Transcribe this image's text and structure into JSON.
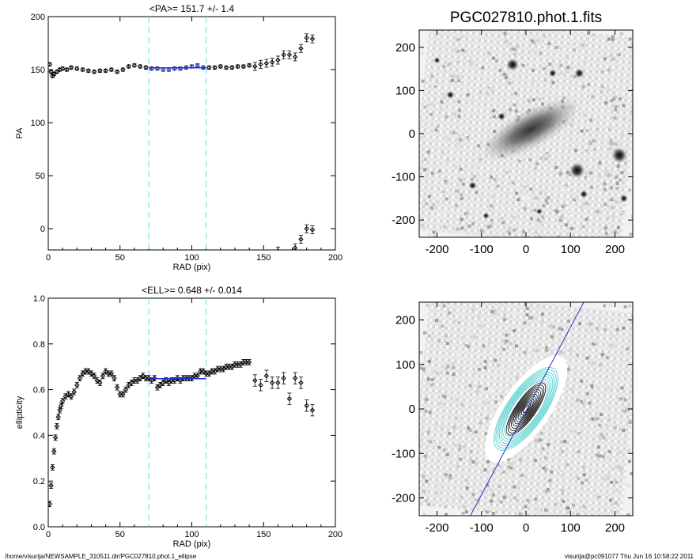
{
  "footer": {
    "left": "/home/visurija/NEWSAMPLE_310511.dir/PGC027810.phot.1_ellipse",
    "right": "visurija@pc091077  Thu Jun 16 10:58:22 2011"
  },
  "chart_data": [
    {
      "type": "scatter",
      "title": "<PA>= 151.7 +/-   1.4",
      "xlabel": "RAD (pix)",
      "ylabel": "PA",
      "xlim": [
        0,
        200
      ],
      "ylim": [
        -20,
        200
      ],
      "xticks": [
        "0",
        "50",
        "100",
        "150",
        "200"
      ],
      "yticks": [
        "0",
        "50",
        "100",
        "150",
        "200"
      ],
      "vlines": [
        70,
        110
      ],
      "fit_range": [
        70,
        110
      ],
      "fit_value": 151.7,
      "series": [
        {
          "x": [
            1,
            2,
            3,
            4,
            6,
            8,
            10,
            13,
            16,
            20,
            24,
            28,
            32,
            36,
            40,
            44,
            48,
            52,
            56,
            60,
            64,
            68,
            72,
            76,
            80,
            84,
            88,
            92,
            96,
            100,
            104,
            108,
            112,
            116,
            120,
            124,
            128,
            132,
            136,
            140,
            144,
            148,
            152,
            156,
            160,
            164,
            168,
            172,
            176,
            180,
            184
          ],
          "y": [
            155,
            148,
            144,
            146,
            148,
            150,
            151,
            150,
            152,
            151,
            150,
            149,
            148,
            149,
            149,
            150,
            148,
            150,
            153,
            154,
            153,
            152,
            151,
            151,
            150,
            150,
            151,
            151,
            152,
            153,
            154,
            152,
            152,
            152,
            153,
            152,
            152,
            153,
            153,
            154,
            153,
            155,
            156,
            157,
            159,
            164,
            164,
            162,
            170,
            180,
            179
          ]
        },
        {
          "x": [
            160,
            168,
            172,
            176,
            180,
            184
          ],
          "y": [
            -21,
            -24,
            -18,
            -10,
            0,
            -1
          ]
        }
      ]
    },
    {
      "type": "scatter",
      "title": "<ELL>= 0.648 +/-  0.014",
      "xlabel": "RAD (pix)",
      "ylabel": "ellipticity",
      "xlim": [
        0,
        200
      ],
      "ylim": [
        0,
        1
      ],
      "xticks": [
        "0",
        "50",
        "100",
        "150",
        "200"
      ],
      "yticks": [
        "0.0",
        "0.2",
        "0.4",
        "0.6",
        "0.8",
        "1.0"
      ],
      "vlines": [
        70,
        110
      ],
      "fit_range": [
        70,
        110
      ],
      "fit_value": 0.648,
      "series": [
        {
          "x": [
            1,
            2,
            3,
            4,
            5,
            6,
            7,
            8,
            9,
            10,
            12,
            14,
            16,
            18,
            20,
            22,
            24,
            26,
            28,
            30,
            32,
            34,
            36,
            38,
            40,
            42,
            44,
            46,
            48,
            50,
            52,
            54,
            56,
            58,
            60,
            62,
            64,
            66,
            68,
            70,
            72,
            74,
            76,
            78,
            80,
            82,
            84,
            86,
            88,
            90,
            92,
            94,
            96,
            98,
            100,
            102,
            104,
            106,
            108,
            110,
            112,
            114,
            116,
            118,
            120,
            122,
            124,
            126,
            128,
            130,
            132,
            134,
            136,
            138,
            140,
            144,
            148,
            152,
            156,
            160,
            164,
            168,
            172,
            176,
            180,
            184
          ],
          "y": [
            0.1,
            0.18,
            0.26,
            0.33,
            0.39,
            0.44,
            0.48,
            0.51,
            0.53,
            0.55,
            0.57,
            0.58,
            0.57,
            0.59,
            0.62,
            0.65,
            0.67,
            0.68,
            0.68,
            0.67,
            0.66,
            0.64,
            0.63,
            0.66,
            0.68,
            0.67,
            0.67,
            0.65,
            0.61,
            0.58,
            0.58,
            0.6,
            0.62,
            0.63,
            0.64,
            0.64,
            0.65,
            0.66,
            0.65,
            0.65,
            0.64,
            0.65,
            0.61,
            0.62,
            0.63,
            0.64,
            0.63,
            0.64,
            0.64,
            0.65,
            0.64,
            0.65,
            0.65,
            0.65,
            0.65,
            0.66,
            0.66,
            0.68,
            0.68,
            0.67,
            0.67,
            0.68,
            0.68,
            0.69,
            0.69,
            0.69,
            0.7,
            0.7,
            0.7,
            0.71,
            0.71,
            0.71,
            0.72,
            0.72,
            0.72,
            0.64,
            0.62,
            0.66,
            0.63,
            0.63,
            0.65,
            0.56,
            0.65,
            0.63,
            0.53,
            0.51
          ]
        }
      ]
    },
    {
      "type": "image",
      "title": "PGC027810.phot.1.fits",
      "xlim": [
        -240,
        240
      ],
      "ylim": [
        -240,
        240
      ],
      "xticks": [
        "-200",
        "-100",
        "0",
        "100",
        "200"
      ],
      "yticks": [
        "-200",
        "-100",
        "0",
        "100",
        "200"
      ],
      "galaxy": {
        "x": 10,
        "y": 10,
        "pa": 151.7,
        "ell": 0.648
      },
      "stars": [
        {
          "x": -30,
          "y": 160,
          "r": 8
        },
        {
          "x": 115,
          "y": -85,
          "r": 10
        },
        {
          "x": 210,
          "y": -50,
          "r": 10
        },
        {
          "x": -55,
          "y": 40,
          "r": 5
        },
        {
          "x": -170,
          "y": 90,
          "r": 5
        },
        {
          "x": 60,
          "y": 140,
          "r": 5
        },
        {
          "x": 120,
          "y": 140,
          "r": 6
        },
        {
          "x": -120,
          "y": -120,
          "r": 5
        },
        {
          "x": -90,
          "y": -190,
          "r": 4
        },
        {
          "x": 130,
          "y": -140,
          "r": 5
        },
        {
          "x": 220,
          "y": -150,
          "r": 5
        },
        {
          "x": -200,
          "y": 170,
          "r": 4
        },
        {
          "x": 30,
          "y": -180,
          "r": 4
        }
      ]
    },
    {
      "type": "image",
      "title": "",
      "xlim": [
        -240,
        240
      ],
      "ylim": [
        -240,
        240
      ],
      "xticks": [
        "-200",
        "-100",
        "0",
        "100",
        "200"
      ],
      "yticks": [
        "-200",
        "-100",
        "0",
        "100",
        "200"
      ],
      "pa_line": {
        "x1": -125,
        "y1": -240,
        "x2": 130,
        "y2": 240
      },
      "isophotes_inner": [
        10,
        16,
        22,
        28,
        34,
        40,
        46,
        52,
        58,
        64,
        70
      ],
      "isophotes_outer": [
        74,
        80,
        86,
        92,
        98,
        104,
        110
      ],
      "colors": {
        "inner": "#000000",
        "outer": "#5fd3d3",
        "line": "#2233cc"
      }
    }
  ]
}
